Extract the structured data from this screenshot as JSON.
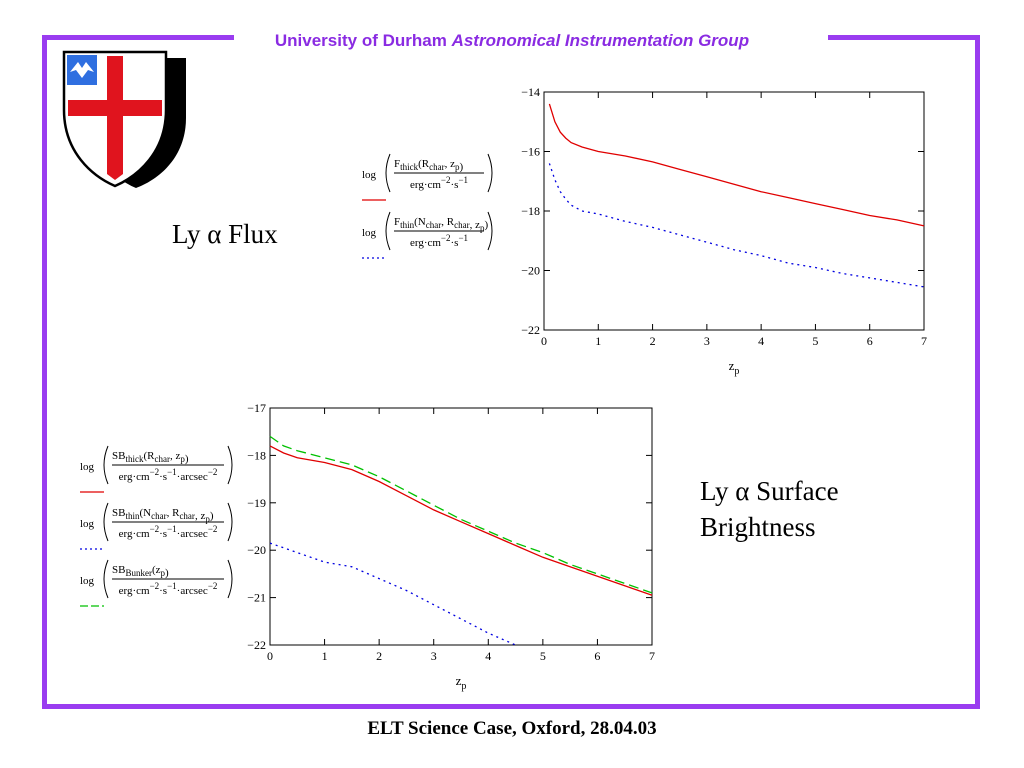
{
  "header": {
    "university": "University of Durham",
    "group": "Astronomical Instrumentation Group"
  },
  "footer": "ELT Science Case, Oxford, 28.04.03",
  "labels": {
    "flux": "Ly α Flux",
    "sb_line1": "Ly α Surface",
    "sb_line2": "Brightness"
  },
  "colors": {
    "frame": "#9a3cf0",
    "thick": "#e00000",
    "thin": "#0000e0",
    "bunker": "#00c000"
  },
  "chart_data": [
    {
      "type": "line",
      "xlabel": "z",
      "xlabel_sub": "p",
      "xlim": [
        0,
        7
      ],
      "ylim": [
        -22,
        -14
      ],
      "xticks": [
        "0",
        "1",
        "2",
        "3",
        "4",
        "5",
        "6",
        "7"
      ],
      "yticks": [
        "−14",
        "−16",
        "−18",
        "−20",
        "−22"
      ],
      "legend": [
        {
          "pre": "log",
          "num_main": "F",
          "num_sub": "thick",
          "num_args": "R",
          "num_args_sub": "char",
          "num_args_tail": ", z",
          "num_tail_sub": "p",
          "den": "erg·cm",
          "den_exp1": "−2",
          "den_mid": "·s",
          "den_exp2": "−1",
          "den_tail": "",
          "den_exp3": ""
        },
        {
          "pre": "log",
          "num_main": "F",
          "num_sub": "thin",
          "num_args": "N",
          "num_args_sub": "char",
          "num_args_tail": ", R",
          "num_tail_sub": "char",
          "num_extra": ", z",
          "num_extra_sub": "p",
          "den": "erg·cm",
          "den_exp1": "−2",
          "den_mid": "·s",
          "den_exp2": "−1",
          "den_tail": "",
          "den_exp3": ""
        }
      ],
      "series": [
        {
          "key": "thick",
          "style": "solid",
          "x": [
            0.1,
            0.2,
            0.3,
            0.4,
            0.5,
            0.7,
            1.0,
            1.5,
            2.0,
            2.5,
            3.0,
            3.5,
            4.0,
            4.5,
            5.0,
            5.5,
            6.0,
            6.5,
            7.0
          ],
          "y": [
            -14.4,
            -15.0,
            -15.35,
            -15.55,
            -15.7,
            -15.85,
            -16.0,
            -16.15,
            -16.35,
            -16.6,
            -16.85,
            -17.1,
            -17.35,
            -17.55,
            -17.75,
            -17.95,
            -18.15,
            -18.3,
            -18.5
          ]
        },
        {
          "key": "thin",
          "style": "dotted",
          "x": [
            0.1,
            0.2,
            0.3,
            0.4,
            0.5,
            0.7,
            1.0,
            1.5,
            2.0,
            2.5,
            3.0,
            3.5,
            4.0,
            4.5,
            5.0,
            5.5,
            6.0,
            6.5,
            7.0
          ],
          "y": [
            -16.4,
            -16.95,
            -17.35,
            -17.6,
            -17.8,
            -18.0,
            -18.1,
            -18.35,
            -18.55,
            -18.8,
            -19.05,
            -19.3,
            -19.5,
            -19.75,
            -19.9,
            -20.1,
            -20.25,
            -20.4,
            -20.55
          ]
        }
      ]
    },
    {
      "type": "line",
      "xlabel": "z",
      "xlabel_sub": "p",
      "xlim": [
        0,
        7
      ],
      "ylim": [
        -22,
        -17
      ],
      "xticks": [
        "0",
        "1",
        "2",
        "3",
        "4",
        "5",
        "6",
        "7"
      ],
      "yticks": [
        "−17",
        "−18",
        "−19",
        "−20",
        "−21",
        "−22"
      ],
      "legend": [
        {
          "pre": "log",
          "num_main": "SB",
          "num_sub": "thick",
          "num_args": "R",
          "num_args_sub": "char",
          "num_args_tail": ", z",
          "num_tail_sub": "p",
          "den": "erg·cm",
          "den_exp1": "−2",
          "den_mid": "·s",
          "den_exp2": "−1",
          "den_tail": "·arcsec",
          "den_exp3": "−2"
        },
        {
          "pre": "log",
          "num_main": "SB",
          "num_sub": "thin",
          "num_args": "N",
          "num_args_sub": "char",
          "num_args_tail": ", R",
          "num_tail_sub": "char",
          "num_extra": ", z",
          "num_extra_sub": "p",
          "den": "erg·cm",
          "den_exp1": "−2",
          "den_mid": "·s",
          "den_exp2": "−1",
          "den_tail": "·arcsec",
          "den_exp3": "−2"
        },
        {
          "pre": "log",
          "num_main": "SB",
          "num_sub": "Bunker",
          "num_args": "z",
          "num_args_sub": "p",
          "num_args_tail": "",
          "num_tail_sub": "",
          "den": "erg·cm",
          "den_exp1": "−2",
          "den_mid": "·s",
          "den_exp2": "−1",
          "den_tail": "·arcsec",
          "den_exp3": "−2"
        }
      ],
      "series": [
        {
          "key": "thick",
          "style": "solid",
          "x": [
            0,
            0.25,
            0.5,
            1.0,
            1.5,
            2.0,
            2.5,
            3.0,
            3.5,
            4.0,
            4.5,
            5.0,
            5.5,
            6.0,
            6.5,
            7.0
          ],
          "y": [
            -17.8,
            -17.95,
            -18.05,
            -18.15,
            -18.3,
            -18.55,
            -18.85,
            -19.15,
            -19.4,
            -19.65,
            -19.9,
            -20.15,
            -20.35,
            -20.55,
            -20.75,
            -20.95
          ]
        },
        {
          "key": "thin",
          "style": "dotted",
          "x": [
            0,
            0.25,
            0.5,
            1.0,
            1.5,
            2.0,
            2.5,
            3.0,
            3.5,
            4.0,
            4.5
          ],
          "y": [
            -19.85,
            -19.95,
            -20.05,
            -20.25,
            -20.35,
            -20.6,
            -20.85,
            -21.15,
            -21.45,
            -21.75,
            -22.0
          ]
        },
        {
          "key": "bunker",
          "style": "dashed",
          "x": [
            0,
            0.25,
            0.5,
            1.0,
            1.5,
            2.0,
            2.5,
            3.0,
            3.5,
            4.0,
            4.5,
            5.0,
            5.5,
            6.0,
            6.5,
            7.0
          ],
          "y": [
            -17.6,
            -17.8,
            -17.9,
            -18.05,
            -18.2,
            -18.45,
            -18.75,
            -19.05,
            -19.35,
            -19.6,
            -19.85,
            -20.05,
            -20.3,
            -20.5,
            -20.7,
            -20.9
          ]
        }
      ]
    }
  ]
}
